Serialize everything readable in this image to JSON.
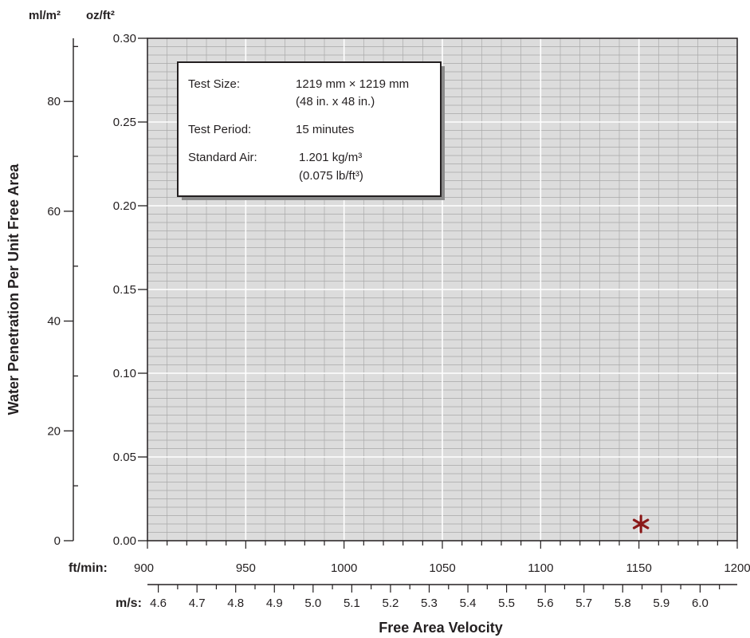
{
  "chart_data": {
    "type": "scatter",
    "title": "",
    "ylabel": "Water Penetration Per Unit Free Area",
    "xlabel": "Free Area Velocity",
    "left_axis": {
      "unit": "ml/m²",
      "ticks": [
        "0",
        "20",
        "40",
        "60",
        "80"
      ],
      "tick_values": [
        0,
        20,
        40,
        60,
        80
      ],
      "range": [
        0,
        91.5
      ]
    },
    "y_axis": {
      "unit": "oz/ft²",
      "ticks": [
        "0.00",
        "0.05",
        "0.10",
        "0.15",
        "0.20",
        "0.25",
        "0.30"
      ],
      "tick_values": [
        0,
        0.05,
        0.1,
        0.15,
        0.2,
        0.25,
        0.3
      ],
      "ylim": [
        0,
        0.3
      ]
    },
    "x_axis": {
      "unit": "ft/min:",
      "ticks": [
        "900",
        "950",
        "1000",
        "1050",
        "1100",
        "1150",
        "1200"
      ],
      "tick_values": [
        900,
        950,
        1000,
        1050,
        1100,
        1150,
        1200
      ],
      "xlim": [
        900,
        1200
      ]
    },
    "ms_axis": {
      "unit": "m/s:",
      "ticks": [
        "4.6",
        "4.7",
        "4.8",
        "4.9",
        "5.0",
        "5.1",
        "5.2",
        "5.3",
        "5.4",
        "5.5",
        "5.6",
        "5.7",
        "5.8",
        "5.9",
        "6.0"
      ],
      "tick_values": [
        4.6,
        4.7,
        4.8,
        4.9,
        5.0,
        5.1,
        5.2,
        5.3,
        5.4,
        5.5,
        5.6,
        5.7,
        5.8,
        5.9,
        6.0
      ]
    },
    "grid": true,
    "series": [
      {
        "marker": "asterisk",
        "color": "#8b1a1a",
        "points": [
          {
            "x": 1151,
            "y": 0.01
          }
        ]
      }
    ],
    "info_box": {
      "placement": "top-left",
      "rows": [
        {
          "label": "Test Size:",
          "lines": [
            "1219 mm × 1219 mm",
            "(48 in. x 48 in.)"
          ]
        },
        {
          "label": "Test Period:",
          "lines": [
            "15 minutes"
          ]
        },
        {
          "label": "Standard Air:",
          "lines": [
            "1.201 kg/m³",
            "(0.075 lb/ft³)"
          ]
        }
      ]
    }
  },
  "colors": {
    "plot_bg": "#dcdcdc",
    "minor_grid": "#a9a9a9",
    "major_grid": "#ffffff",
    "axis": "#231f20",
    "marker": "#8b1a1a"
  }
}
